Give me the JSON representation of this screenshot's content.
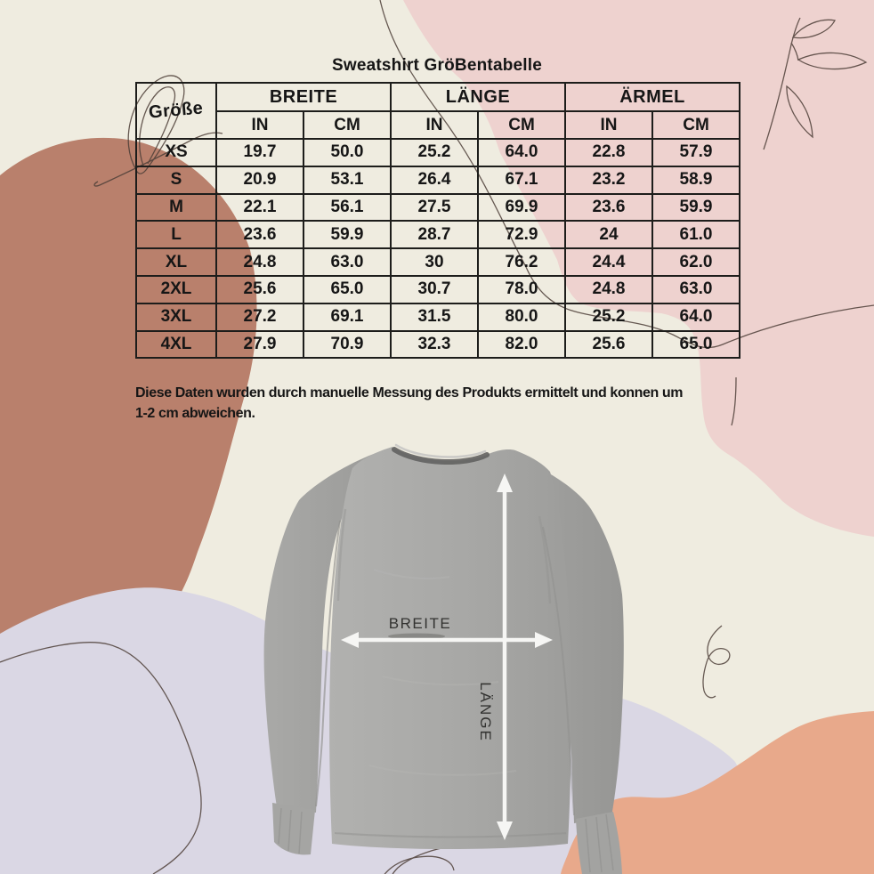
{
  "title": "Sweatshirt GröBentabelle",
  "table": {
    "size_header": "Größe",
    "groups": [
      "BREITE",
      "LÄNGE",
      "ÄRMEL"
    ],
    "units": [
      "IN",
      "CM"
    ],
    "rows": [
      {
        "size": "XS",
        "values": [
          "19.7",
          "50.0",
          "25.2",
          "64.0",
          "22.8",
          "57.9"
        ]
      },
      {
        "size": "S",
        "values": [
          "20.9",
          "53.1",
          "26.4",
          "67.1",
          "23.2",
          "58.9"
        ]
      },
      {
        "size": "M",
        "values": [
          "22.1",
          "56.1",
          "27.5",
          "69.9",
          "23.6",
          "59.9"
        ]
      },
      {
        "size": "L",
        "values": [
          "23.6",
          "59.9",
          "28.7",
          "72.9",
          "24",
          "61.0"
        ]
      },
      {
        "size": "XL",
        "values": [
          "24.8",
          "63.0",
          "30",
          "76.2",
          "24.4",
          "62.0"
        ]
      },
      {
        "size": "2XL",
        "values": [
          "25.6",
          "65.0",
          "30.7",
          "78.0",
          "24.8",
          "63.0"
        ]
      },
      {
        "size": "3XL",
        "values": [
          "27.2",
          "69.1",
          "31.5",
          "80.0",
          "25.2",
          "64.0"
        ]
      },
      {
        "size": "4XL",
        "values": [
          "27.9",
          "70.9",
          "32.3",
          "82.0",
          "25.6",
          "65.0"
        ]
      }
    ]
  },
  "footnote": {
    "line1": "Diese Daten wurden durch manuelle Messung des Produkts ermittelt und konnen um",
    "line2": "1-2 cm abweichen."
  },
  "diagram": {
    "width_label": "BREITE",
    "length_label": "LÄNGE"
  },
  "colors": {
    "background": "#efece0",
    "blob_pink": "#eed2cf",
    "blob_terracotta": "#b9806c",
    "blob_lavender": "#dad7e4",
    "blob_salmon": "#e8a98b",
    "sweatshirt_gray": "#a8a8a6",
    "table_line": "#1d1d1b",
    "text": "#161616",
    "arrow_white": "#f6f6f4",
    "line_art": "#4e3f38"
  }
}
